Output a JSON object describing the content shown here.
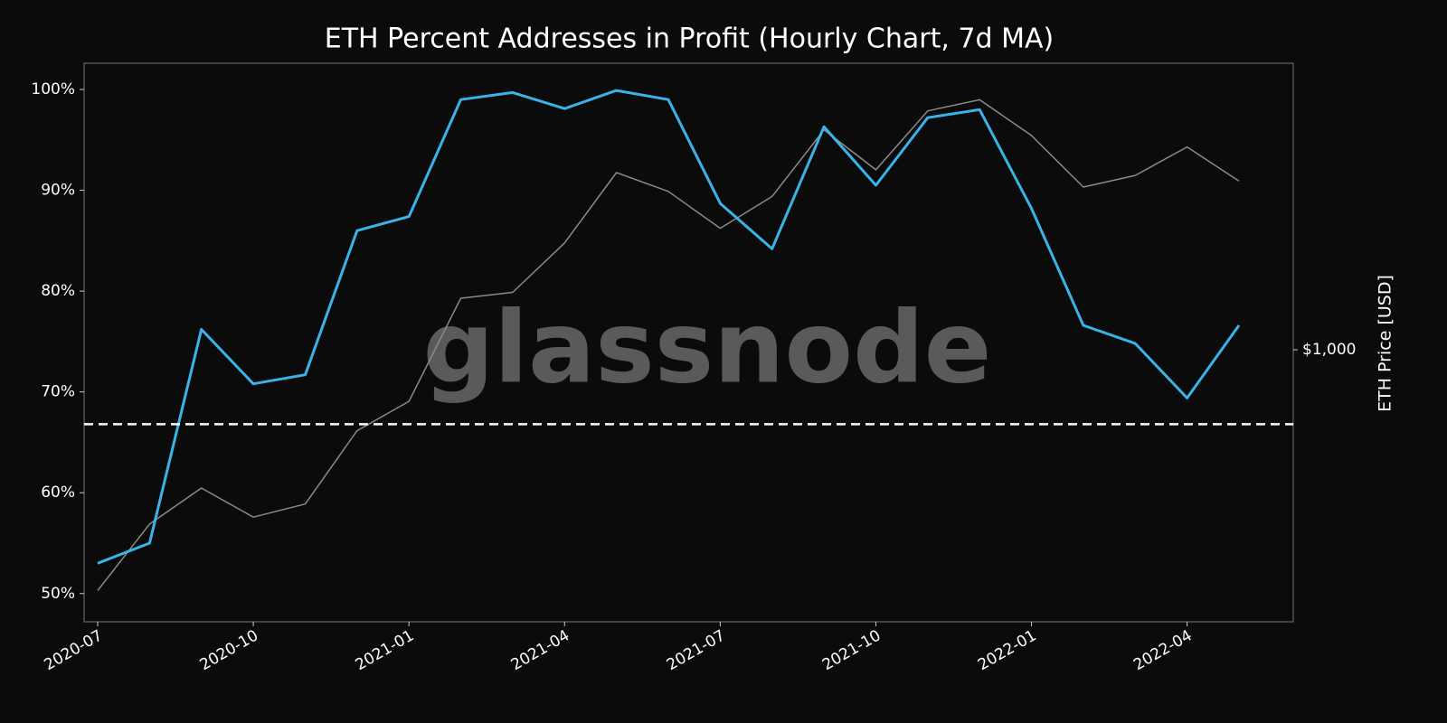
{
  "chart_data": {
    "type": "line",
    "title": "ETH Percent Addresses in Profit (Hourly Chart, 7d MA)",
    "y2_label": "ETH Price [USD]",
    "watermark": "glassnode",
    "x": [
      "2020-07",
      "2020-08",
      "2020-09",
      "2020-10",
      "2020-11",
      "2020-12",
      "2021-01",
      "2021-02",
      "2021-03",
      "2021-04",
      "2021-05",
      "2021-06",
      "2021-07",
      "2021-08",
      "2021-09",
      "2021-10",
      "2021-11",
      "2021-12",
      "2022-01",
      "2022-02",
      "2022-03",
      "2022-04",
      "2022-05"
    ],
    "xlim": [
      "2020-07",
      "2022-05"
    ],
    "xticks": [
      "2020-07",
      "2020-10",
      "2021-01",
      "2021-04",
      "2021-07",
      "2021-10",
      "2022-01",
      "2022-04"
    ],
    "ylim": [
      47.2,
      102.6
    ],
    "yticks": [
      {
        "value": 50,
        "label": "50%"
      },
      {
        "value": 60,
        "label": "60%"
      },
      {
        "value": 70,
        "label": "70%"
      },
      {
        "value": 80,
        "label": "80%"
      },
      {
        "value": 90,
        "label": "90%"
      },
      {
        "value": 100,
        "label": "100%"
      }
    ],
    "y2lim": [
      190,
      5750
    ],
    "y2ticks": [
      {
        "value": 1000,
        "label": "$1,000"
      }
    ],
    "y2_log": true,
    "reference_line": 66.8,
    "series": [
      {
        "name": "Percent Addresses in Profit",
        "color": "#3ab3e8",
        "values": [
          53,
          55,
          76.2,
          70.8,
          71.7,
          86.0,
          87.4,
          99,
          99.7,
          98.1,
          99.9,
          99,
          88.7,
          84.2,
          96.3,
          90.5,
          97.2,
          98,
          88.2,
          76.6,
          74.8,
          69.4,
          76.6
        ]
      },
      {
        "name": "ETH Price",
        "color": "#8a8a8a",
        "axis": "y2",
        "values": [
          230,
          345,
          430,
          360,
          390,
          610,
          730,
          1370,
          1420,
          1920,
          2950,
          2630,
          2100,
          2550,
          3830,
          3000,
          4300,
          4600,
          3700,
          2700,
          2900,
          3450,
          2800
        ]
      }
    ]
  }
}
